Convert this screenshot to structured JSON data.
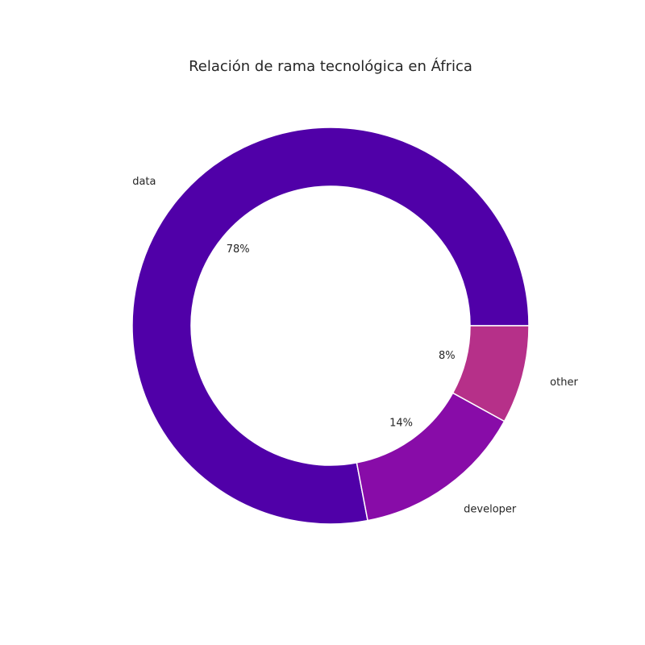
{
  "chart_data": {
    "type": "pie",
    "subtype": "donut",
    "title": "Relación de rama tecnológica en África",
    "slices": [
      {
        "label": "data",
        "value": 78,
        "pct_label": "78%",
        "color": "#5000a8"
      },
      {
        "label": "developer",
        "value": 14,
        "pct_label": "14%",
        "color": "#880ca8"
      },
      {
        "label": "other",
        "value": 8,
        "pct_label": "8%",
        "color": "#b63089"
      }
    ],
    "start_angle_deg": 0,
    "direction": "counterclockwise",
    "slice_edge_color": "#ffffff"
  }
}
